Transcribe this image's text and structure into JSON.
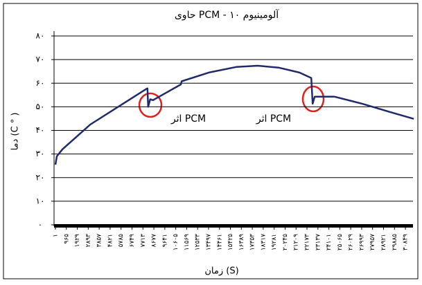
{
  "chart_data": {
    "type": "line",
    "title": "حاوی PCM - آلومینیوم ۱۰",
    "xlabel": "زمان (S)",
    "ylabel": "دما (C ° )",
    "color": "#1f2a6b",
    "x": [
      1,
      124,
      615,
      3073,
      5531,
      7988,
      8110,
      8172,
      8357,
      8603,
      11060,
      11122,
      13518,
      15976,
      17819,
      19662,
      21506,
      22550,
      22673,
      22858,
      24578,
      27036,
      29494,
      31583
    ],
    "values": [
      25.5,
      29,
      32,
      42.5,
      50,
      57.5,
      57.8,
      50,
      53.2,
      52.8,
      59.5,
      60.8,
      64.5,
      66.9,
      67.4,
      66.6,
      64.5,
      62.2,
      51.3,
      54.3,
      54.3,
      51.3,
      47.8,
      44.9
    ],
    "xlim": [
      1,
      31700
    ],
    "xticks": [
      {
        "value": 1,
        "label": "۱"
      },
      {
        "value": 965,
        "label": "۹۶۵"
      },
      {
        "value": 1929,
        "label": "۱۹۲۹"
      },
      {
        "value": 2893,
        "label": "۲۸۹۳"
      },
      {
        "value": 3857,
        "label": "۳۸۵۷"
      },
      {
        "value": 4821,
        "label": "۴۸۲۱"
      },
      {
        "value": 5785,
        "label": "۵۷۸۵"
      },
      {
        "value": 6749,
        "label": "۶۷۴۹"
      },
      {
        "value": 7713,
        "label": "۷۷۱۳"
      },
      {
        "value": 8677,
        "label": "۸۶۷۷"
      },
      {
        "value": 9641,
        "label": "۹۶۴۱"
      },
      {
        "value": 10605,
        "label": "۱۰۶۰۵"
      },
      {
        "value": 11569,
        "label": "۱۱۵۶۹"
      },
      {
        "value": 12533,
        "label": "۱۲۵۳۳"
      },
      {
        "value": 13497,
        "label": "۱۳۴۹۷"
      },
      {
        "value": 14461,
        "label": "۱۴۴۶۱"
      },
      {
        "value": 15425,
        "label": "۱۵۴۲۵"
      },
      {
        "value": 16389,
        "label": "۱۶۳۸۹"
      },
      {
        "value": 17353,
        "label": "۱۷۳۵۳"
      },
      {
        "value": 18317,
        "label": "۱۸۳۱۷"
      },
      {
        "value": 19281,
        "label": "۱۹۲۸۱"
      },
      {
        "value": 20245,
        "label": "۲۰۲۴۵"
      },
      {
        "value": 21209,
        "label": "۲۱۲۰۹"
      },
      {
        "value": 22173,
        "label": "۲۲۱۷۳"
      },
      {
        "value": 23137,
        "label": "۲۳۱۳۷"
      },
      {
        "value": 24101,
        "label": "۲۴۱۰۱"
      },
      {
        "value": 25065,
        "label": "۲۵۰۶۵"
      },
      {
        "value": 26029,
        "label": "۲۶۰۲۹"
      },
      {
        "value": 26993,
        "label": "۲۶۹۹۳"
      },
      {
        "value": 27957,
        "label": "۲۷۹۵۷"
      },
      {
        "value": 28921,
        "label": "۲۸۹۲۱"
      },
      {
        "value": 29885,
        "label": "۲۹۸۸۵"
      },
      {
        "value": 30849,
        "label": "۳۰۸۴۹"
      }
    ],
    "ylim": [
      0,
      80
    ],
    "yticks": [
      {
        "value": 0,
        "label": "۰"
      },
      {
        "value": 10,
        "label": "۱۰"
      },
      {
        "value": 20,
        "label": "۲۰"
      },
      {
        "value": 30,
        "label": "۳۰"
      },
      {
        "value": 40,
        "label": "۴۰"
      },
      {
        "value": 50,
        "label": "۵۰"
      },
      {
        "value": 60,
        "label": "۶۰"
      },
      {
        "value": 70,
        "label": "۷۰"
      },
      {
        "value": 80,
        "label": "۸۰"
      }
    ],
    "grid": true,
    "annotations": [
      "اثر PCM",
      "اثر PCM"
    ]
  }
}
